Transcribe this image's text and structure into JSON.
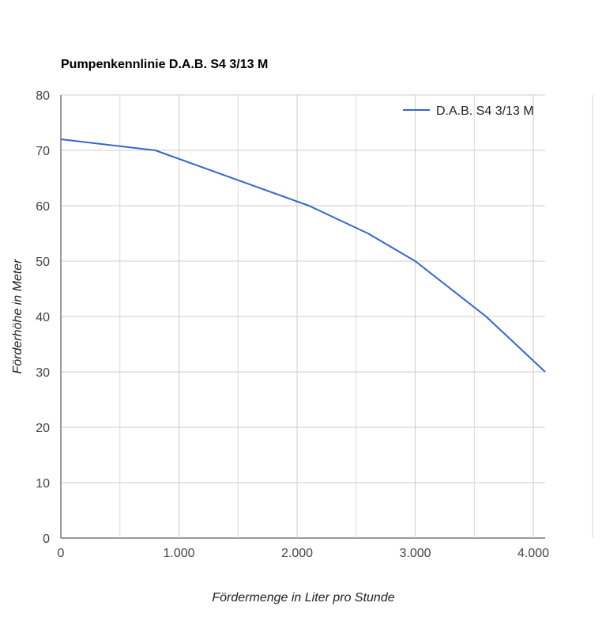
{
  "chart_data": {
    "type": "line",
    "title": "Pumpenkennlinie D.A.B. S4 3/13 M",
    "xlabel": "Fördermenge in Liter pro Stunde",
    "ylabel": "Förderhöhe in Meter",
    "xlim": [
      0,
      4100
    ],
    "ylim": [
      0,
      80
    ],
    "x_ticks": [
      0,
      1000,
      2000,
      3000,
      4000
    ],
    "x_tick_labels": [
      "0",
      "1.000",
      "2.000",
      "3.000",
      "4.000"
    ],
    "y_ticks": [
      0,
      10,
      20,
      30,
      40,
      50,
      60,
      70,
      80
    ],
    "y_tick_labels": [
      "0",
      "10",
      "20",
      "30",
      "40",
      "50",
      "60",
      "70",
      "80"
    ],
    "x_minor_grid": [
      500,
      1500,
      2500,
      3500
    ],
    "grid": true,
    "legend_position": "top-right",
    "series": [
      {
        "name": "D.A.B. S4 3/13 M",
        "color": "#3366cc",
        "points": [
          {
            "x": 0,
            "y": 72
          },
          {
            "x": 800,
            "y": 70
          },
          {
            "x": 2100,
            "y": 60
          },
          {
            "x": 2600,
            "y": 55
          },
          {
            "x": 3000,
            "y": 50
          },
          {
            "x": 3600,
            "y": 40
          },
          {
            "x": 4100,
            "y": 30
          }
        ]
      }
    ]
  }
}
